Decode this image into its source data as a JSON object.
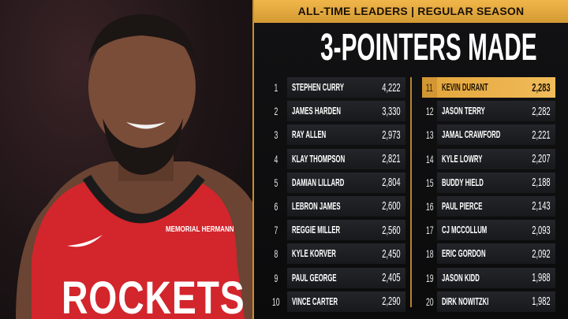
{
  "header": {
    "subtitle": "ALL-TIME LEADERS | REGULAR SEASON",
    "title": "3-POINTERS MADE"
  },
  "photo": {
    "jersey_text": "ROCKETS",
    "sponsor": "MEMORIAL HERMANN",
    "jersey_color": "#d3252c"
  },
  "colors": {
    "gold": "#e6a73e",
    "background": "#111113"
  },
  "leaders_left": [
    {
      "rank": "1",
      "name": "STEPHEN CURRY",
      "value": "4,222"
    },
    {
      "rank": "2",
      "name": "JAMES HARDEN",
      "value": "3,330"
    },
    {
      "rank": "3",
      "name": "RAY ALLEN",
      "value": "2,973"
    },
    {
      "rank": "4",
      "name": "KLAY THOMPSON",
      "value": "2,821"
    },
    {
      "rank": "5",
      "name": "DAMIAN LILLARD",
      "value": "2,804"
    },
    {
      "rank": "6",
      "name": "LEBRON JAMES",
      "value": "2,600"
    },
    {
      "rank": "7",
      "name": "REGGIE MILLER",
      "value": "2,560"
    },
    {
      "rank": "8",
      "name": "KYLE KORVER",
      "value": "2,450"
    },
    {
      "rank": "9",
      "name": "PAUL GEORGE",
      "value": "2,405"
    },
    {
      "rank": "10",
      "name": "VINCE CARTER",
      "value": "2,290"
    }
  ],
  "leaders_right": [
    {
      "rank": "11",
      "name": "KEVIN DURANT",
      "value": "2,283",
      "highlight": true
    },
    {
      "rank": "12",
      "name": "JASON TERRY",
      "value": "2,282"
    },
    {
      "rank": "13",
      "name": "JAMAL CRAWFORD",
      "value": "2,221"
    },
    {
      "rank": "14",
      "name": "KYLE LOWRY",
      "value": "2,207"
    },
    {
      "rank": "15",
      "name": "BUDDY HIELD",
      "value": "2,188"
    },
    {
      "rank": "16",
      "name": "PAUL PIERCE",
      "value": "2,143"
    },
    {
      "rank": "17",
      "name": "CJ MCCOLLUM",
      "value": "2,093"
    },
    {
      "rank": "18",
      "name": "ERIC GORDON",
      "value": "2,092"
    },
    {
      "rank": "19",
      "name": "JASON KIDD",
      "value": "1,988"
    },
    {
      "rank": "20",
      "name": "DIRK NOWITZKI",
      "value": "1,982"
    }
  ]
}
